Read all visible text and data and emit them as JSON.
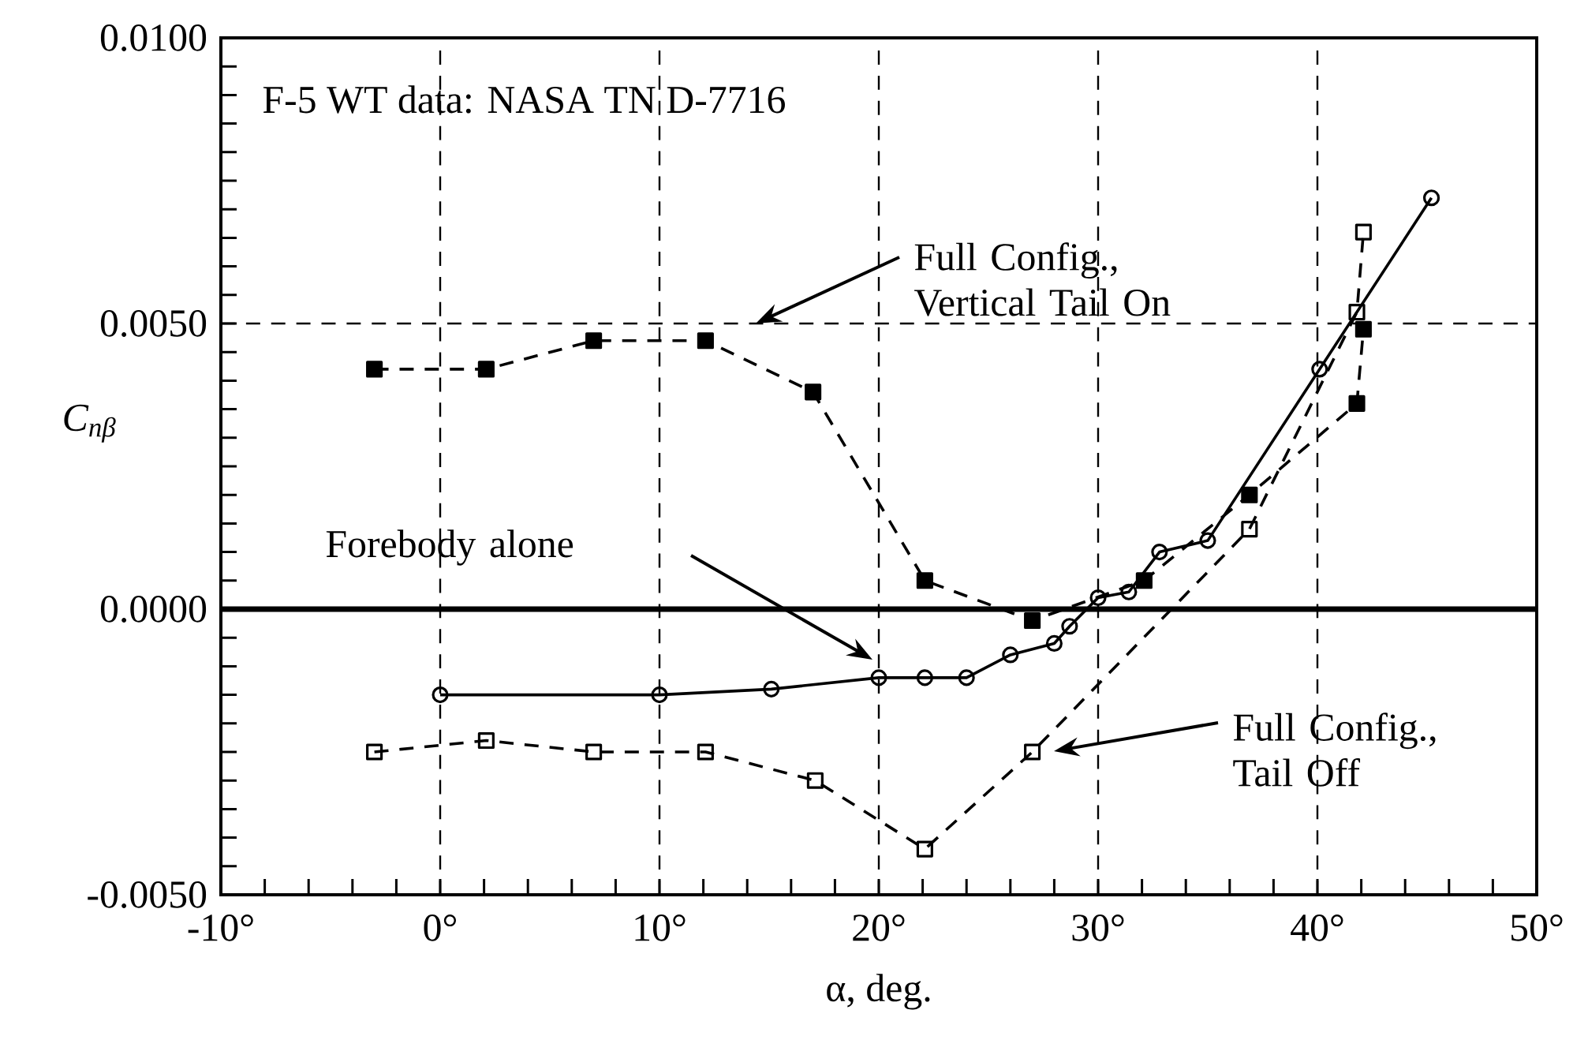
{
  "chart_data": {
    "type": "line",
    "xlabel": "α, deg.",
    "ylabel": "C$_{nβ}$",
    "xlim": [
      -10,
      50
    ],
    "ylim": [
      -0.005,
      0.01
    ],
    "xticks": [
      {
        "value": -10,
        "label": "-10°"
      },
      {
        "value": 0,
        "label": "0°"
      },
      {
        "value": 10,
        "label": "10°"
      },
      {
        "value": 20,
        "label": "20°"
      },
      {
        "value": 30,
        "label": "30°"
      },
      {
        "value": 40,
        "label": "40°"
      },
      {
        "value": 50,
        "label": "50°"
      }
    ],
    "yticks": [
      {
        "value": -0.005,
        "label": "-0.0050"
      },
      {
        "value": 0,
        "label": "0.0000"
      },
      {
        "value": 0.005,
        "label": "0.0050"
      },
      {
        "value": 0.01,
        "label": "0.0100"
      }
    ],
    "grid": true,
    "ref_lines": [
      {
        "axis": "y",
        "value": 0,
        "color": "#000000",
        "line_style": "solid"
      }
    ],
    "series": [
      {
        "color": "#000000",
        "marker": "square",
        "line_style": "dashed",
        "x": [
          -3.0,
          2.1,
          7.0,
          12.1,
          17.0,
          22.1,
          27.0,
          32.1,
          36.9,
          41.8,
          42.1
        ],
        "values": [
          0.0042,
          0.0042,
          0.0047,
          0.0047,
          0.0038,
          0.0005,
          -0.0002,
          0.0005,
          0.002,
          0.0036,
          0.0049
        ]
      },
      {
        "color": "#000000",
        "marker": "circle",
        "line_style": "solid",
        "x": [
          0.0,
          10.0,
          15.1,
          20.0,
          22.1,
          24.0,
          26.0,
          28.0,
          28.7,
          30.0,
          31.4,
          32.8,
          35.0,
          40.1,
          45.2
        ],
        "values": [
          -0.0015,
          -0.0015,
          -0.0014,
          -0.0012,
          -0.0012,
          -0.0012,
          -0.0008,
          -0.0006,
          -0.0003,
          0.0002,
          0.0003,
          0.001,
          0.0012,
          0.0042,
          0.0072
        ]
      },
      {
        "color": "#000000",
        "marker": "square",
        "line_style": "dashed",
        "x": [
          -3.0,
          2.1,
          7.0,
          12.1,
          17.1,
          22.1,
          27.0,
          36.9,
          41.8,
          42.1
        ],
        "values": [
          -0.0025,
          -0.0023,
          -0.0025,
          -0.0025,
          -0.003,
          -0.0042,
          -0.0025,
          0.0014,
          0.0052,
          0.0066
        ]
      }
    ],
    "annotations": [
      "F-5 WT data: NASA TN D-7716",
      "Full Config., Vertical Tail On",
      "Forebody alone",
      "Full Config., Tail Off"
    ]
  }
}
